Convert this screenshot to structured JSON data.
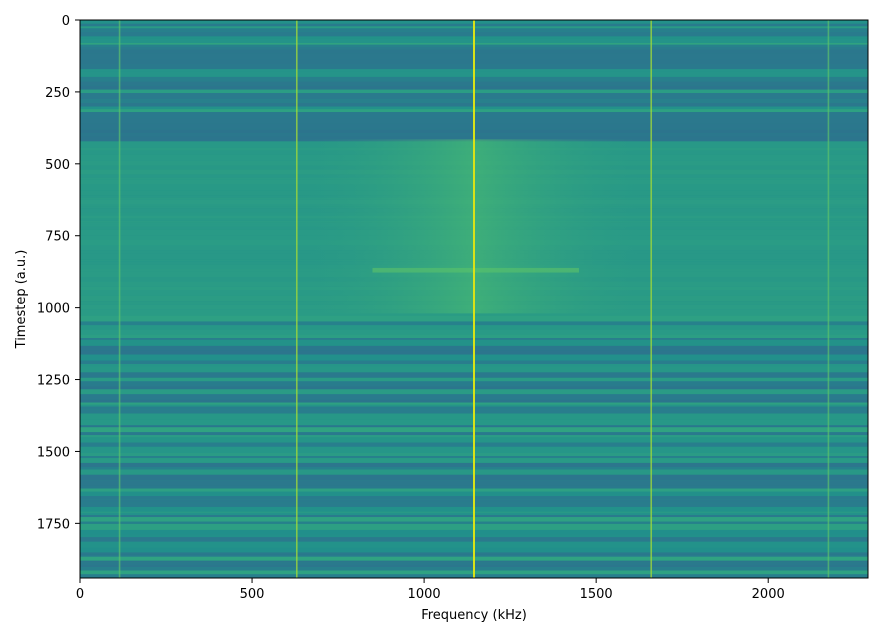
{
  "chart_data": {
    "type": "heatmap",
    "title": "",
    "xlabel": "Frequency (kHz)",
    "ylabel": "Timestep (a.u.)",
    "xlim": [
      0,
      2290
    ],
    "ylim": [
      1940,
      0
    ],
    "x_ticks": [
      0,
      500,
      1000,
      1500,
      2000
    ],
    "y_ticks": [
      0,
      250,
      500,
      750,
      1000,
      1250,
      1500,
      1750
    ],
    "colormap": "viridis",
    "grid": false,
    "legend": "none",
    "spectral_lines_khz": [
      {
        "freq": 115,
        "strength": 0.35
      },
      {
        "freq": 630,
        "strength": 0.55
      },
      {
        "freq": 1145,
        "strength": 1.0
      },
      {
        "freq": 1660,
        "strength": 0.55
      },
      {
        "freq": 2175,
        "strength": 0.35
      }
    ],
    "bright_region": {
      "t_start": 415,
      "t_end": 1020,
      "f_center": 1145
    },
    "dark_band": {
      "t_start": 320,
      "t_end": 415
    },
    "highlight_row": {
      "t": 870
    }
  },
  "colors": {
    "background_low": "#2f6e8e",
    "background_mid": "#218f8b",
    "background_high": "#3bb27a",
    "line_peak": "#d8e219"
  }
}
